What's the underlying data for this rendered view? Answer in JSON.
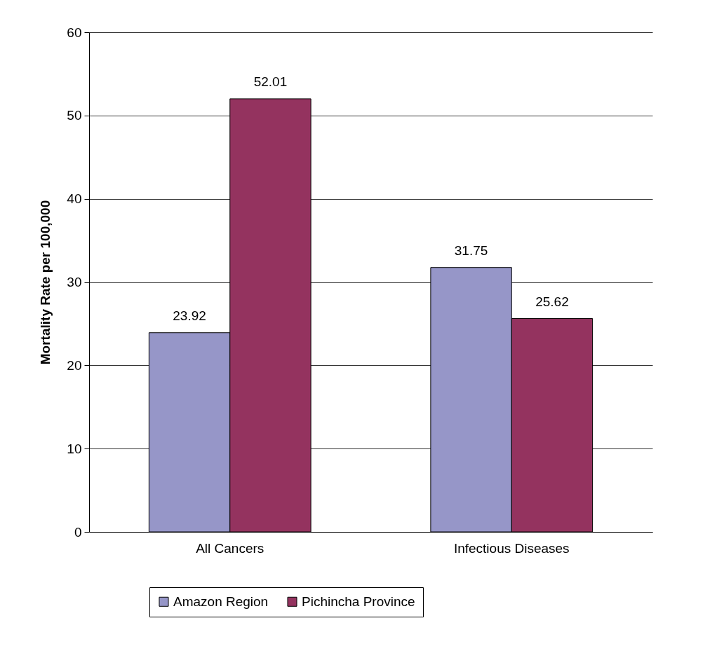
{
  "chart_data": {
    "type": "bar",
    "ylabel": "Mortality Rate per 100,000",
    "categories": [
      "All Cancers",
      "Infectious Diseases"
    ],
    "series": [
      {
        "name": "Amazon Region",
        "color": "#9696c8",
        "values": [
          23.92,
          31.75
        ]
      },
      {
        "name": "Pichincha Province",
        "color": "#94335f",
        "values": [
          52.01,
          25.62
        ]
      }
    ],
    "ylim": [
      0,
      60
    ],
    "yticks": [
      0,
      10,
      20,
      30,
      40,
      50,
      60
    ],
    "grid": "y",
    "legend": "bottom",
    "data_labels": true
  }
}
